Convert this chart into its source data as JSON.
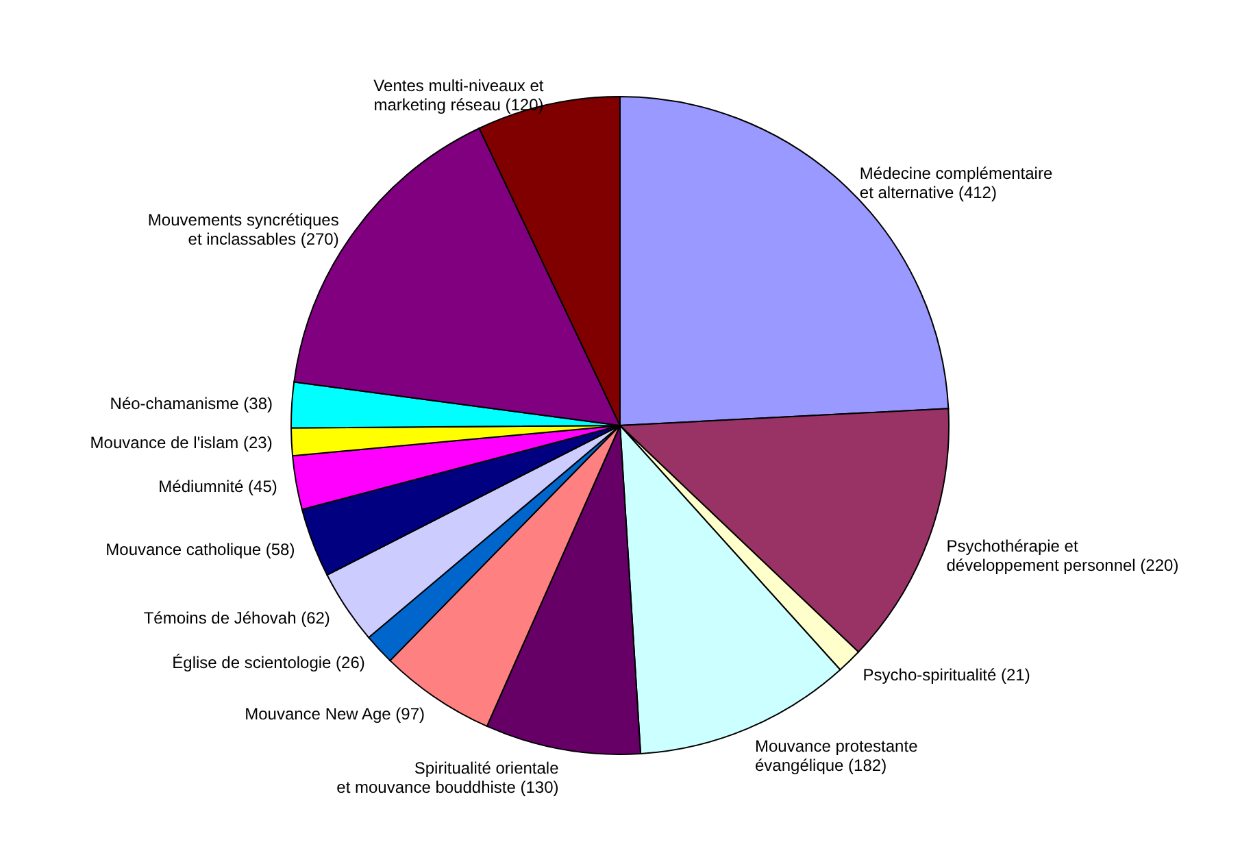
{
  "chart_data": {
    "type": "pie",
    "categories": [
      "Médecine complémentaire et alternative",
      "Psychothérapie et développement personnel",
      "Psycho-spiritualité",
      "Mouvance protestante évangélique",
      "Spiritualité orientale et mouvance bouddhiste",
      "Mouvance New Age",
      "Église de scientologie",
      "Témoins de Jéhovah",
      "Mouvance catholique",
      "Médiumnité",
      "Mouvance de l'islam",
      "Néo-chamanisme",
      "Mouvements syncrétiques et inclassables",
      "Ventes multi-niveaux et marketing réseau"
    ],
    "values": [
      412,
      220,
      21,
      182,
      130,
      97,
      26,
      62,
      58,
      45,
      23,
      38,
      270,
      120
    ],
    "value_labels": [
      "(412)",
      "(220)",
      "(21)",
      "(182)",
      "(130)",
      "(97)",
      "(26)",
      "(62)",
      "(58)",
      "(45)",
      "(23)",
      "(38)",
      "(270)",
      "(120)"
    ],
    "colors": [
      "#9999ff",
      "#993366",
      "#ffffcc",
      "#ccffff",
      "#660066",
      "#ff8080",
      "#0066cc",
      "#ccccff",
      "#000080",
      "#ff00ff",
      "#ffff00",
      "#00ffff",
      "#800080",
      "#800000"
    ]
  }
}
